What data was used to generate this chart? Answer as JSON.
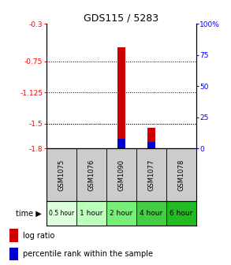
{
  "title": "GDS115 / 5283",
  "samples": [
    "GSM1075",
    "GSM1076",
    "GSM1090",
    "GSM1077",
    "GSM1078"
  ],
  "time_labels": [
    "0.5 hour",
    "1 hour",
    "2 hour",
    "4 hour",
    "6 hour"
  ],
  "time_colors": [
    "#ddffdd",
    "#bbffbb",
    "#77ee77",
    "#44cc44",
    "#22bb22"
  ],
  "log_ratio": [
    null,
    null,
    -0.58,
    -1.55,
    null
  ],
  "percentile_rank": [
    null,
    null,
    8,
    5,
    null
  ],
  "ylim_left": [
    -1.8,
    -0.3
  ],
  "ylim_right": [
    0,
    100
  ],
  "yticks_left": [
    -1.8,
    -1.5,
    -1.125,
    -0.75,
    -0.3
  ],
  "yticks_left_labels": [
    "-1.8",
    "-1.5",
    "-1.125",
    "-0.75",
    "-0.3"
  ],
  "yticks_right": [
    0,
    25,
    50,
    75,
    100
  ],
  "yticks_right_labels": [
    "0",
    "25",
    "50",
    "75",
    "100%"
  ],
  "bar_width": 0.25,
  "bar_color_log": "#cc0000",
  "bar_color_pct": "#0000cc",
  "sample_bg_color": "#cccccc",
  "legend_log_label": "log ratio",
  "legend_pct_label": "percentile rank within the sample"
}
